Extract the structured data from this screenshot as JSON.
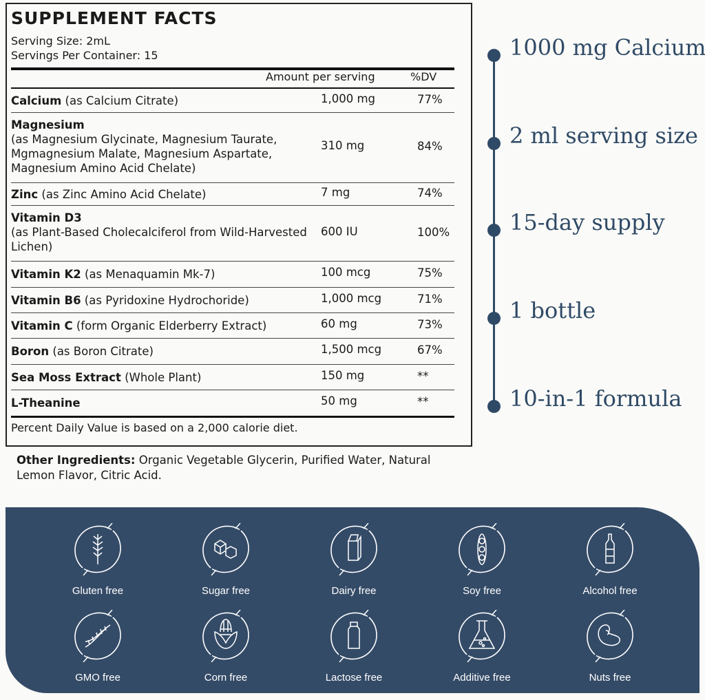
{
  "facts": {
    "title": "SUPPLEMENT FACTS",
    "serving_size": "Serving Size: 2mL",
    "servings": "Servings Per Container: 15",
    "col_amount": "Amount per serving",
    "col_dv": "%DV",
    "rows": [
      {
        "name": "Calcium",
        "desc": " (as Calcium Citrate)",
        "amount": "1,000 mg",
        "dv": "77%"
      },
      {
        "name": "Magnesium",
        "desc": "(as Magnesium Glycinate, Magnesium Taurate, Mgmagnesium Malate, Magnesium Aspartate, Magnesium Amino Acid Chelate)",
        "amount": "310 mg",
        "dv": "84%"
      },
      {
        "name": "Zinc",
        "desc": " (as Zinc Amino Acid Chelate)",
        "amount": "7 mg",
        "dv": "74%"
      },
      {
        "name": "Vitamin D3",
        "desc": "(as Plant-Based Cholecalciferol from Wild-Harvested Lichen)",
        "amount": "600 IU",
        "dv": "100%"
      },
      {
        "name": "Vitamin K2",
        "desc": " (as Menaquamin Mk-7)",
        "amount": "100 mcg",
        "dv": "75%"
      },
      {
        "name": "Vitamin B6",
        "desc": " (as Pyridoxine Hydrochoride)",
        "amount": "1,000 mcg",
        "dv": "71%"
      },
      {
        "name": "Vitamin C",
        "desc": " (form Organic Elderberry Extract)",
        "amount": "60 mg",
        "dv": "73%"
      },
      {
        "name": "Boron",
        "desc": " (as Boron Citrate)",
        "amount": "1,500 mcg",
        "dv": "67%"
      },
      {
        "name": "Sea Moss Extract",
        "desc": " (Whole Plant)",
        "amount": "150 mg",
        "dv": "**"
      },
      {
        "name": "L-Theanine",
        "desc": "",
        "amount": "50 mg",
        "dv": "**"
      }
    ],
    "footnote": "Percent Daily Value is based on a 2,000 calorie diet."
  },
  "other_ingredients": {
    "label": "Other Ingredients:",
    "text": " Organic Vegetable Glycerin, Purified Water, Natural Lemon Flavor, Citric Acid."
  },
  "highlights": [
    "1000 mg Calcium",
    "2 ml serving size",
    "15-day supply",
    "1 bottle",
    "10-in-1 formula"
  ],
  "badges": [
    {
      "label": "Gluten free",
      "icon": "wheat-icon"
    },
    {
      "label": "Sugar free",
      "icon": "sugar-cubes-icon"
    },
    {
      "label": "Dairy free",
      "icon": "milk-carton-icon"
    },
    {
      "label": "Soy free",
      "icon": "soybean-icon"
    },
    {
      "label": "Alcohol free",
      "icon": "bottle-icon"
    },
    {
      "label": "GMO free",
      "icon": "dna-icon"
    },
    {
      "label": "Corn free",
      "icon": "corn-icon"
    },
    {
      "label": "Lactose free",
      "icon": "milk-bottle-icon"
    },
    {
      "label": "Additive free",
      "icon": "flask-icon"
    },
    {
      "label": "Nuts free",
      "icon": "nut-icon"
    }
  ],
  "colors": {
    "navy": "#344b67",
    "accent": "#2f4a66"
  }
}
